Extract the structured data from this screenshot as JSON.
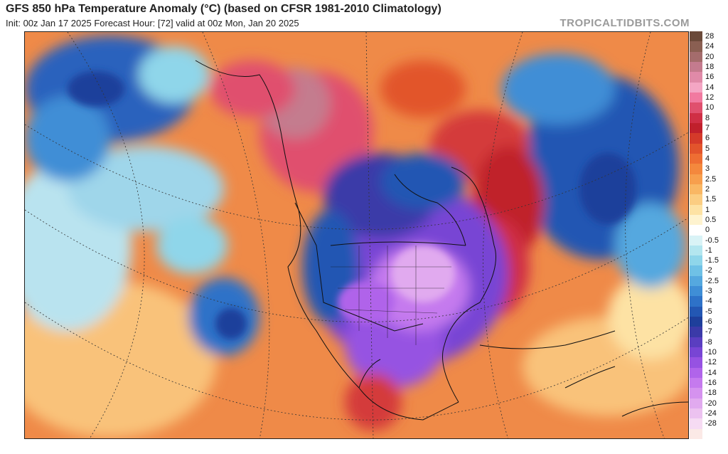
{
  "header": {
    "title": "GFS 850 hPa Temperature Anomaly (°C) (based on CFSR 1981-2010 Climatology)",
    "subtitle": "Init: 00z Jan 17 2025   Forecast Hour: [72]   valid at 00z Mon, Jan 20 2025",
    "credit": "TROPICALTIDBITS.COM"
  },
  "colorbar": {
    "levels": [
      {
        "label": "28",
        "color": "#6b4a3a"
      },
      {
        "label": "24",
        "color": "#8a5f52"
      },
      {
        "label": "20",
        "color": "#a46c6c"
      },
      {
        "label": "18",
        "color": "#c47b8e"
      },
      {
        "label": "16",
        "color": "#e08aa8"
      },
      {
        "label": "14",
        "color": "#f4a6c4"
      },
      {
        "label": "12",
        "color": "#f17aa0"
      },
      {
        "label": "10",
        "color": "#e0506e"
      },
      {
        "label": "8",
        "color": "#cf2f45"
      },
      {
        "label": "7",
        "color": "#c0202c"
      },
      {
        "label": "6",
        "color": "#d43a2a"
      },
      {
        "label": "5",
        "color": "#e2542c"
      },
      {
        "label": "4",
        "color": "#ee6e33"
      },
      {
        "label": "3",
        "color": "#f4883d"
      },
      {
        "label": "2.5",
        "color": "#f79f4d"
      },
      {
        "label": "2",
        "color": "#f9b764"
      },
      {
        "label": "1.5",
        "color": "#fbcd82"
      },
      {
        "label": "1",
        "color": "#fde2a4"
      },
      {
        "label": "0.5",
        "color": "#fef3cf"
      },
      {
        "label": "0",
        "color": "#ffffff"
      },
      {
        "label": "-0.5",
        "color": "#d9f3f6"
      },
      {
        "label": "-1",
        "color": "#b3e6ef"
      },
      {
        "label": "-1.5",
        "color": "#8fd6ea"
      },
      {
        "label": "-2",
        "color": "#6fc1e6"
      },
      {
        "label": "-2.5",
        "color": "#55a8df"
      },
      {
        "label": "-3",
        "color": "#3f8ed6"
      },
      {
        "label": "-4",
        "color": "#2e72c8"
      },
      {
        "label": "-5",
        "color": "#2357b3"
      },
      {
        "label": "-6",
        "color": "#1e3f9b"
      },
      {
        "label": "-7",
        "color": "#3b3aa8"
      },
      {
        "label": "-8",
        "color": "#5a3ec0"
      },
      {
        "label": "-10",
        "color": "#7845d4"
      },
      {
        "label": "-12",
        "color": "#9652e2"
      },
      {
        "label": "-14",
        "color": "#b064ea"
      },
      {
        "label": "-16",
        "color": "#c57aee"
      },
      {
        "label": "-18",
        "color": "#d592ef"
      },
      {
        "label": "-20",
        "color": "#e1aaef"
      },
      {
        "label": "-24",
        "color": "#ecc2f0"
      },
      {
        "label": "-28",
        "color": "#f6dbf3"
      },
      {
        "label": "",
        "color": "#fbe9e6"
      }
    ]
  }
}
